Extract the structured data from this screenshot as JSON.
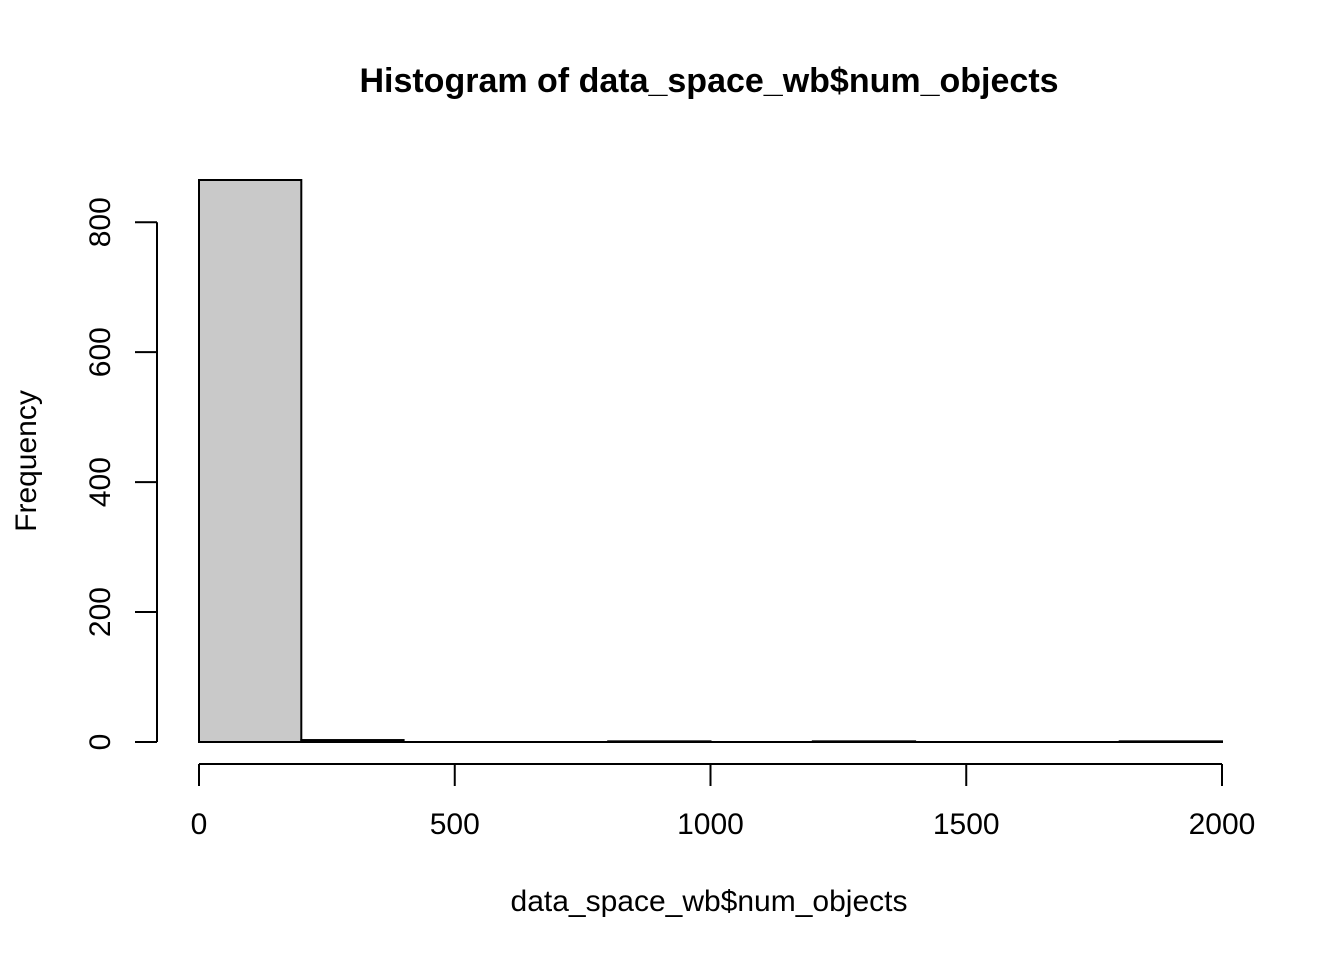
{
  "chart_data": {
    "type": "bar",
    "title": "Histogram of data_space_wb$num_objects",
    "xlabel": "data_space_wb$num_objects",
    "ylabel": "Frequency",
    "bin_edges": [
      0,
      200,
      400,
      600,
      800,
      1000,
      1200,
      1400,
      1600,
      1800,
      2000
    ],
    "values": [
      865,
      3,
      0,
      0,
      1,
      0,
      1,
      0,
      0,
      1
    ],
    "xlim": [
      0,
      2000
    ],
    "ylim": [
      0,
      865
    ],
    "x_ticks": [
      0,
      500,
      1000,
      1500,
      2000
    ],
    "y_ticks": [
      0,
      200,
      400,
      600,
      800
    ],
    "bar_fill": "#c9c9c9",
    "bar_stroke": "#000000",
    "grid": false,
    "legend": "none"
  }
}
